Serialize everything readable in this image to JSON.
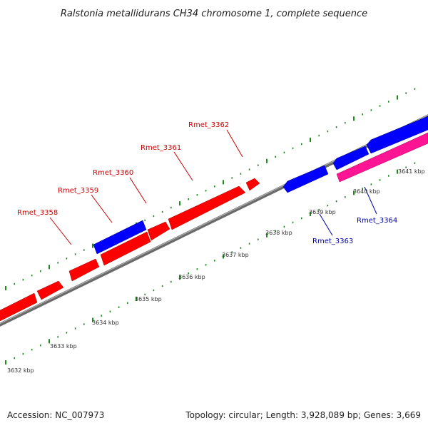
{
  "title": "Ralstonia metallidurans CH34 chromosome 1, complete sequence",
  "footer": {
    "accession": "Accession: NC_007973",
    "summary": "Topology: circular; Length: 3,928,089 bp; Genes: 3,669"
  },
  "colors": {
    "forward_gene": "#ff0000",
    "reverse_gene": "#0000ff",
    "pink_gene": "#ff1493",
    "backbone": "#808080",
    "ticks": "#1a8a1a",
    "forward_label": "#cc0000",
    "reverse_label": "#0000aa"
  },
  "scale_labels": [
    "3632 kbp",
    "3633 kbp",
    "3634 kbp",
    "3635 kbp",
    "3636 kbp",
    "3637 kbp",
    "3638 kbp",
    "3639 kbp",
    "3640 kbp",
    "3641 kbp"
  ],
  "gene_labels": [
    {
      "name": "Rmet_3358",
      "strand": "forward"
    },
    {
      "name": "Rmet_3359",
      "strand": "forward"
    },
    {
      "name": "Rmet_3360",
      "strand": "forward"
    },
    {
      "name": "Rmet_3361",
      "strand": "forward"
    },
    {
      "name": "Rmet_3362",
      "strand": "forward"
    },
    {
      "name": "Rmet_3363",
      "strand": "reverse"
    },
    {
      "name": "Rmet_3364",
      "strand": "reverse"
    }
  ]
}
